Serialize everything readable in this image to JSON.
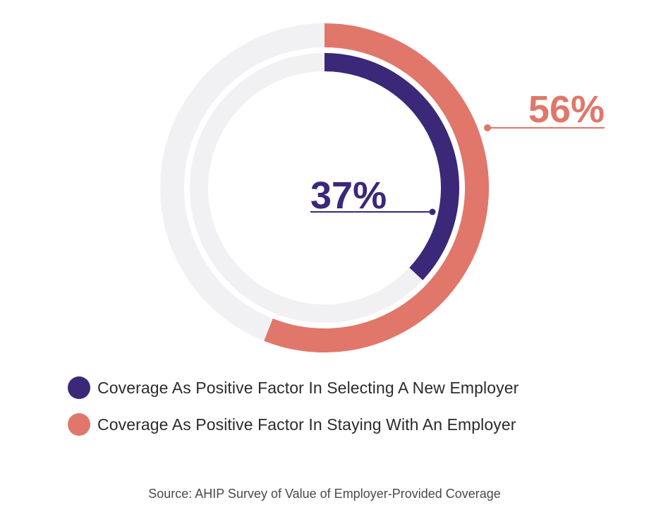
{
  "chart_data": {
    "type": "pie",
    "subtype": "nested-radial-donut",
    "series": [
      {
        "name": "Coverage As Positive Factor In Selecting A New Employer",
        "value": 37,
        "label": "37%",
        "color": "#3B2878"
      },
      {
        "name": "Coverage As Positive Factor In Staying With An Employer",
        "value": 56,
        "label": "56%",
        "color": "#E0776A"
      }
    ],
    "track_color": "#F1F1F4",
    "max": 100
  },
  "source": "Source: AHIP Survey of Value of Employer-Provided Coverage"
}
